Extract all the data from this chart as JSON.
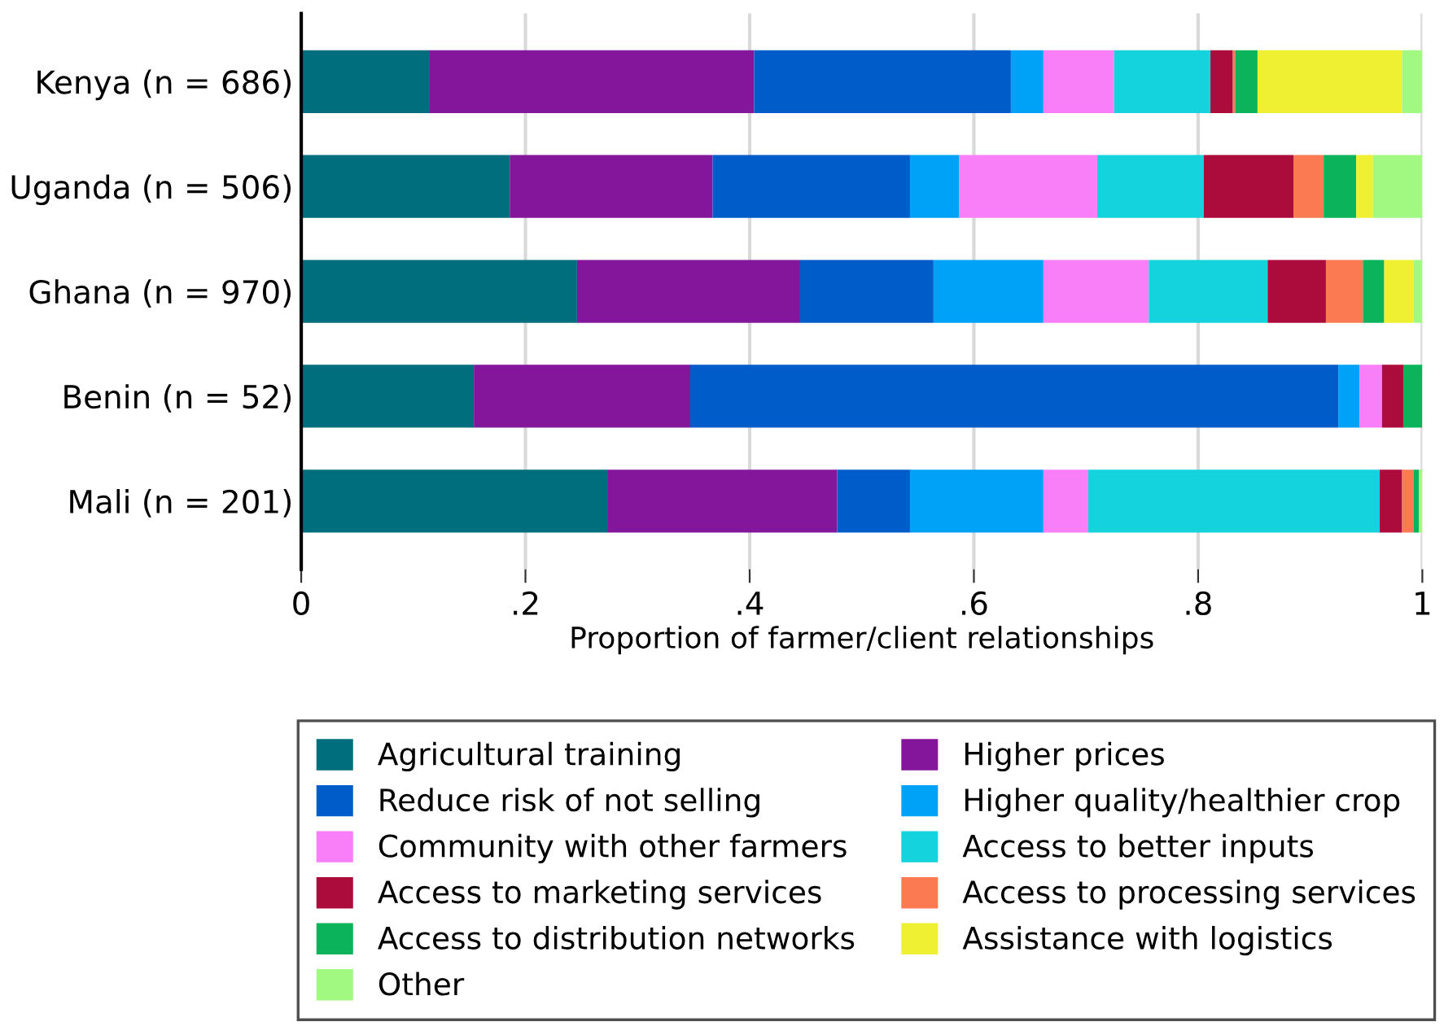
{
  "chart_data": {
    "type": "bar",
    "orientation": "horizontal",
    "stacked": true,
    "xlabel": "Proportion of farmer/client relationships",
    "categories": [
      "Kenya (n = 686)",
      "Uganda (n = 506)",
      "Ghana (n = 970)",
      "Benin (n = 52)",
      "Mali (n = 201)"
    ],
    "series": [
      {
        "name": "Agricultural training",
        "color": "#006e7c",
        "values": [
          0.114,
          0.186,
          0.246,
          0.154,
          0.273
        ]
      },
      {
        "name": "Higher prices",
        "color": "#84169c",
        "values": [
          0.29,
          0.181,
          0.199,
          0.193,
          0.205
        ]
      },
      {
        "name": "Reduce risk of not selling",
        "color": "#005cc8",
        "values": [
          0.229,
          0.176,
          0.119,
          0.578,
          0.065
        ]
      },
      {
        "name": "Higher quality/healthier crop",
        "color": "#00a2f8",
        "values": [
          0.029,
          0.044,
          0.098,
          0.019,
          0.119
        ]
      },
      {
        "name": "Community with other farmers",
        "color": "#f97ff8",
        "values": [
          0.063,
          0.123,
          0.094,
          0.02,
          0.04
        ]
      },
      {
        "name": "Access to better inputs",
        "color": "#15d3dc",
        "values": [
          0.086,
          0.095,
          0.106,
          0.0,
          0.26
        ]
      },
      {
        "name": "Access to marketing services",
        "color": "#ab0c3c",
        "values": [
          0.02,
          0.08,
          0.052,
          0.019,
          0.02
        ]
      },
      {
        "name": "Access to processing services",
        "color": "#fb7a52",
        "values": [
          0.002,
          0.027,
          0.033,
          0.0,
          0.01
        ]
      },
      {
        "name": "Access to distribution networks",
        "color": "#0bb35b",
        "values": [
          0.02,
          0.029,
          0.019,
          0.017,
          0.005
        ]
      },
      {
        "name": "Assistance with logistics",
        "color": "#f0f032",
        "values": [
          0.129,
          0.015,
          0.026,
          0.0,
          0.0
        ]
      },
      {
        "name": "Other",
        "color": "#a1f982",
        "values": [
          0.018,
          0.044,
          0.008,
          0.0,
          0.003
        ]
      }
    ],
    "xlim": [
      0,
      1
    ],
    "xticks": [
      0,
      {
        "value": 0.2,
        "label": ".2"
      },
      {
        "value": 0.4,
        "label": ".4"
      },
      {
        "value": 0.6,
        "label": ".6"
      },
      {
        "value": 0.8,
        "label": ".8"
      },
      1
    ],
    "grid": "x",
    "legend": "bottom"
  }
}
